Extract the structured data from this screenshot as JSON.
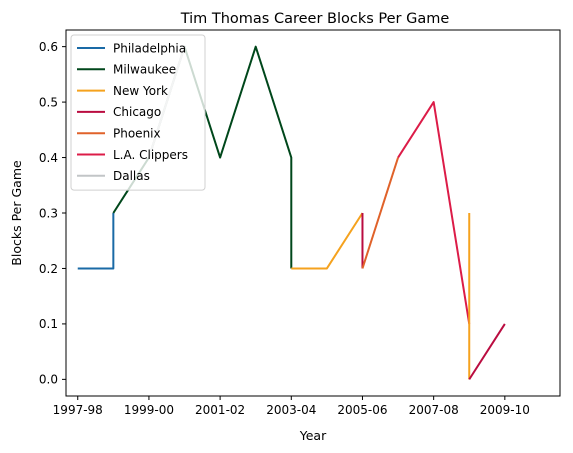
{
  "chart_data": {
    "type": "line",
    "title": "Tim Thomas  Career Blocks Per Game",
    "xlabel": "Year",
    "ylabel": "Blocks Per Game",
    "x_ticks": [
      "1997-98",
      "1999-00",
      "2001-02",
      "2003-04",
      "2005-06",
      "2007-08",
      "2009-10"
    ],
    "y_ticks": [
      "0.0",
      "0.1",
      "0.2",
      "0.3",
      "0.4",
      "0.5",
      "0.6"
    ],
    "xlim": [
      1996.67,
      2010.55
    ],
    "ylim": [
      -0.03,
      0.63
    ],
    "legend_position": "upper-left",
    "series": [
      {
        "name": "Philadelphia",
        "color": "#1a6aa6",
        "points": [
          [
            1997,
            0.2
          ],
          [
            1998,
            0.2
          ],
          [
            1998,
            0.3
          ]
        ]
      },
      {
        "name": "Milwaukee",
        "color": "#00471b",
        "points": [
          [
            1998,
            0.3
          ],
          [
            1999,
            0.4
          ],
          [
            2000,
            0.6
          ],
          [
            2001,
            0.4
          ],
          [
            2002,
            0.6
          ],
          [
            2003,
            0.4
          ],
          [
            2003,
            0.2
          ]
        ]
      },
      {
        "name": "New York",
        "color": "#f5a21e",
        "points": [
          [
            2003,
            0.2
          ],
          [
            2004,
            0.2
          ],
          [
            2005,
            0.3
          ]
        ]
      },
      {
        "name": "Chicago",
        "color": "#ba0c40",
        "points": [
          [
            2005,
            0.3
          ],
          [
            2005,
            0.2
          ]
        ]
      },
      {
        "name": "Phoenix",
        "color": "#e0622a",
        "points": [
          [
            2005,
            0.2
          ],
          [
            2006,
            0.4
          ]
        ]
      },
      {
        "name": "L.A. Clippers",
        "color": "#dc1c48",
        "points": [
          [
            2006,
            0.4
          ],
          [
            2007,
            0.5
          ],
          [
            2008,
            0.1
          ]
        ]
      },
      {
        "name": "Dallas",
        "color": "#c2c5c7",
        "points": [
          [
            1999,
            0.4
          ],
          [
            2000,
            0.6
          ]
        ]
      },
      {
        "name": "",
        "color": "#f5a21e",
        "points": [
          [
            2008,
            0.3
          ],
          [
            2008,
            0.0
          ]
        ]
      },
      {
        "name": "",
        "color": "#ba0c40",
        "points": [
          [
            2008,
            0.0
          ],
          [
            2009,
            0.1
          ]
        ]
      }
    ]
  }
}
